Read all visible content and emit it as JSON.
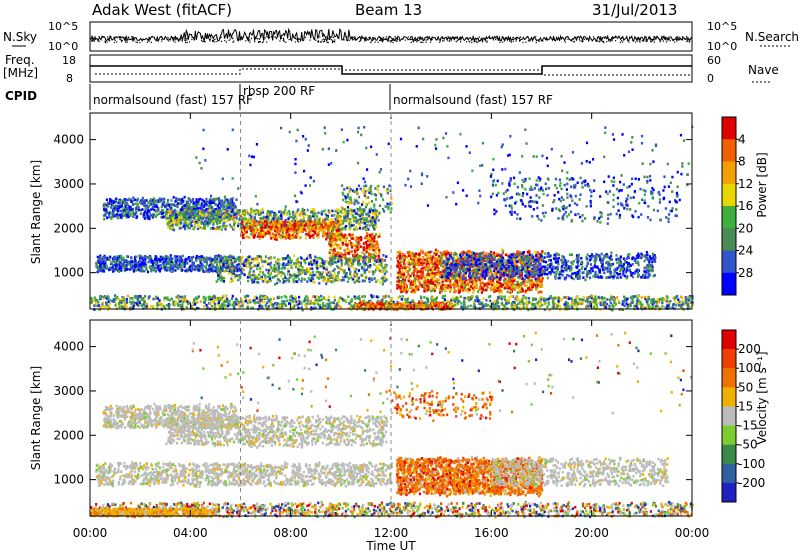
{
  "header": {
    "station": "Adak West (fitACF)",
    "beam": "Beam 13",
    "date": "31/Jul/2013"
  },
  "noise_panel": {
    "left_label": "N.Sky",
    "right_label": "N.Search",
    "left_ticks": [
      "10^5",
      "10^0"
    ],
    "right_ticks": [
      "10^5",
      "10^0"
    ]
  },
  "freq_panel": {
    "left_label": "Freq.",
    "left_unit": "[MHz]",
    "right_label": "Nave",
    "left_ticks": [
      "18",
      "8"
    ],
    "right_ticks": [
      "60",
      "0"
    ]
  },
  "cpid_panel": {
    "label": "CPID",
    "segments": [
      {
        "start": "00:00",
        "text": "normalsound (fast) 157 RF"
      },
      {
        "start": "06:00",
        "text": "rbsp 200 RF"
      },
      {
        "start": "12:00",
        "text": "normalsound (fast) 157 RF"
      }
    ]
  },
  "chart_data": [
    {
      "type": "heatmap",
      "name": "power",
      "ylabel": "Slant Range [km]",
      "ylim": [
        180,
        4600
      ],
      "yticks": [
        "1000",
        "2000",
        "3000",
        "4000"
      ],
      "xlim": [
        "00:00",
        "24:00"
      ],
      "colorbar": {
        "label": "Power [dB]",
        "ticks": [
          "4",
          "8",
          "12",
          "16",
          "20",
          "24",
          "28"
        ],
        "colors": [
          "#0000ff",
          "#3355cc",
          "#4a8a55",
          "#3fb03f",
          "#e8d800",
          "#f0a000",
          "#f06000",
          "#e00000"
        ]
      }
    },
    {
      "type": "heatmap",
      "name": "velocity",
      "ylabel": "Slant Range [km]",
      "ylim": [
        180,
        4600
      ],
      "yticks": [
        "1000",
        "2000",
        "3000",
        "4000"
      ],
      "xlim": [
        "00:00",
        "24:00"
      ],
      "colorbar": {
        "label": "Velocity [m s⁻¹]",
        "ticks": [
          "200",
          "100",
          "50",
          "15",
          "-15",
          "-50",
          "-100",
          "-200"
        ],
        "colors": [
          "#2020c0",
          "#3060a0",
          "#3a8a4a",
          "#7dcc30",
          "#bcbcbc",
          "#f0b000",
          "#f07000",
          "#f04000",
          "#e00000"
        ]
      }
    }
  ],
  "x_axis": {
    "label": "Time UT",
    "ticks": [
      "00:00",
      "04:00",
      "08:00",
      "12:00",
      "16:00",
      "20:00",
      "00:00"
    ]
  }
}
